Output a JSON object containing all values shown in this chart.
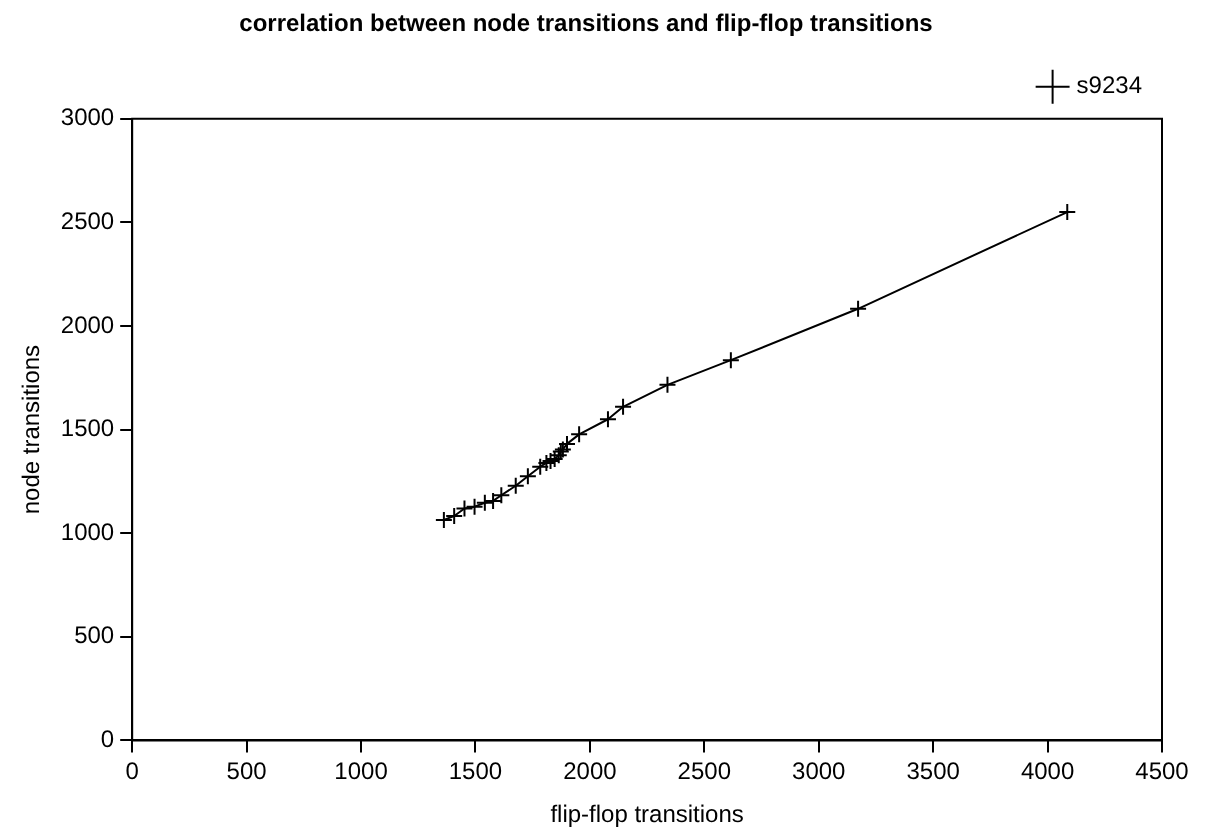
{
  "chart_data": {
    "type": "line",
    "title": "correlation between node transitions and flip-flop transitions",
    "xlabel": "flip-flop transitions",
    "ylabel": "node transitions",
    "xlim": [
      0,
      4500
    ],
    "xticks": [
      0,
      500,
      1000,
      1500,
      2000,
      2500,
      3000,
      3500,
      4000,
      4500
    ],
    "ylim": [
      0,
      3000
    ],
    "yticks": [
      0,
      500,
      1000,
      1500,
      2000,
      2500,
      3000
    ],
    "series": [
      {
        "name": "s9234",
        "color": "#000000",
        "x": [
          1362,
          1407,
          1452,
          1496,
          1541,
          1577,
          1613,
          1676,
          1729,
          1783,
          1810,
          1828,
          1846,
          1864,
          1873,
          1882,
          1900,
          1953,
          2079,
          2145,
          2339,
          2616,
          3172,
          4086
        ],
        "values": [
          1064,
          1083,
          1119,
          1128,
          1147,
          1156,
          1183,
          1229,
          1275,
          1321,
          1339,
          1349,
          1358,
          1376,
          1394,
          1404,
          1431,
          1477,
          1550,
          1610,
          1716,
          1835,
          2083,
          2550
        ]
      }
    ],
    "marker": "cross",
    "line_style": "solid",
    "grid": false,
    "legend": "top right"
  }
}
